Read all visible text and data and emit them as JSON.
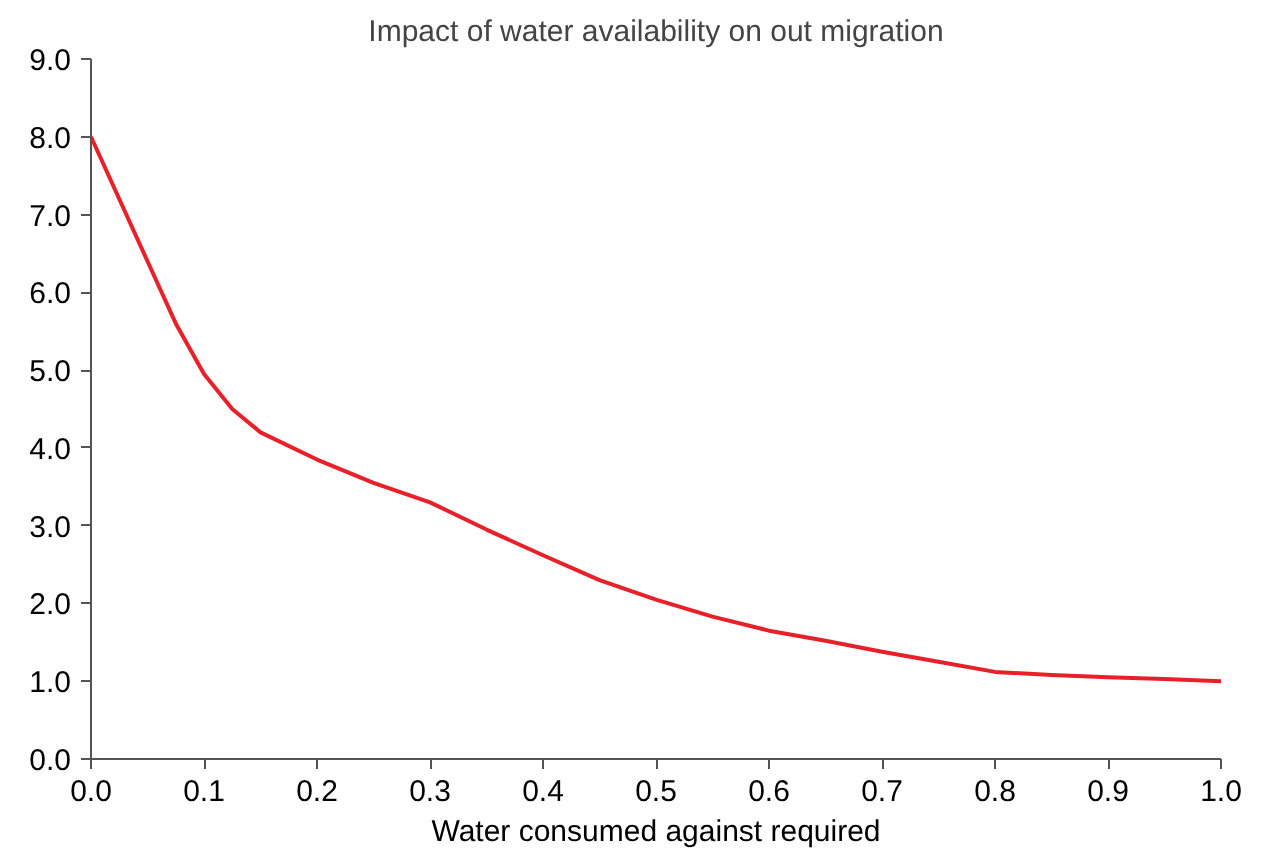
{
  "chart_data": {
    "type": "line",
    "title": "Impact of water availability on out migration",
    "xlabel": "Water consumed against required",
    "series": [
      {
        "color": "#e8202a",
        "x": [
          0,
          0.025,
          0.05,
          0.075,
          0.1,
          0.125,
          0.15,
          0.2,
          0.25,
          0.3,
          0.35,
          0.4,
          0.45,
          0.5,
          0.55,
          0.6,
          0.65,
          0.7,
          0.75,
          0.8,
          0.85,
          0.9,
          0.95,
          1.0
        ],
        "values": [
          8.0,
          7.2,
          6.4,
          5.6,
          4.95,
          4.5,
          4.2,
          3.85,
          3.55,
          3.3,
          2.95,
          2.62,
          2.3,
          2.05,
          1.83,
          1.65,
          1.52,
          1.38,
          1.25,
          1.12,
          1.08,
          1.05,
          1.03,
          1.0
        ]
      }
    ],
    "xlim": [
      0,
      1
    ],
    "ylim": [
      0,
      9
    ],
    "xticks": [
      {
        "value": 0,
        "label": "0.0"
      },
      0.1,
      0.2,
      0.3,
      0.4,
      0.5,
      0.6,
      0.7,
      0.8,
      0.9,
      {
        "value": 1,
        "label": "1.0"
      }
    ],
    "yticks": [
      {
        "value": 0,
        "label": "0.0"
      },
      {
        "value": 1,
        "label": "1.0"
      },
      {
        "value": 2,
        "label": "2.0"
      },
      {
        "value": 3,
        "label": "3.0"
      },
      {
        "value": 4,
        "label": "4.0"
      },
      {
        "value": 5,
        "label": "5.0"
      },
      {
        "value": 6,
        "label": "6.0"
      },
      {
        "value": 7,
        "label": "7.0"
      },
      {
        "value": 8,
        "label": "8.0"
      },
      {
        "value": 9,
        "label": "9.0"
      }
    ],
    "line_style": "solid"
  }
}
